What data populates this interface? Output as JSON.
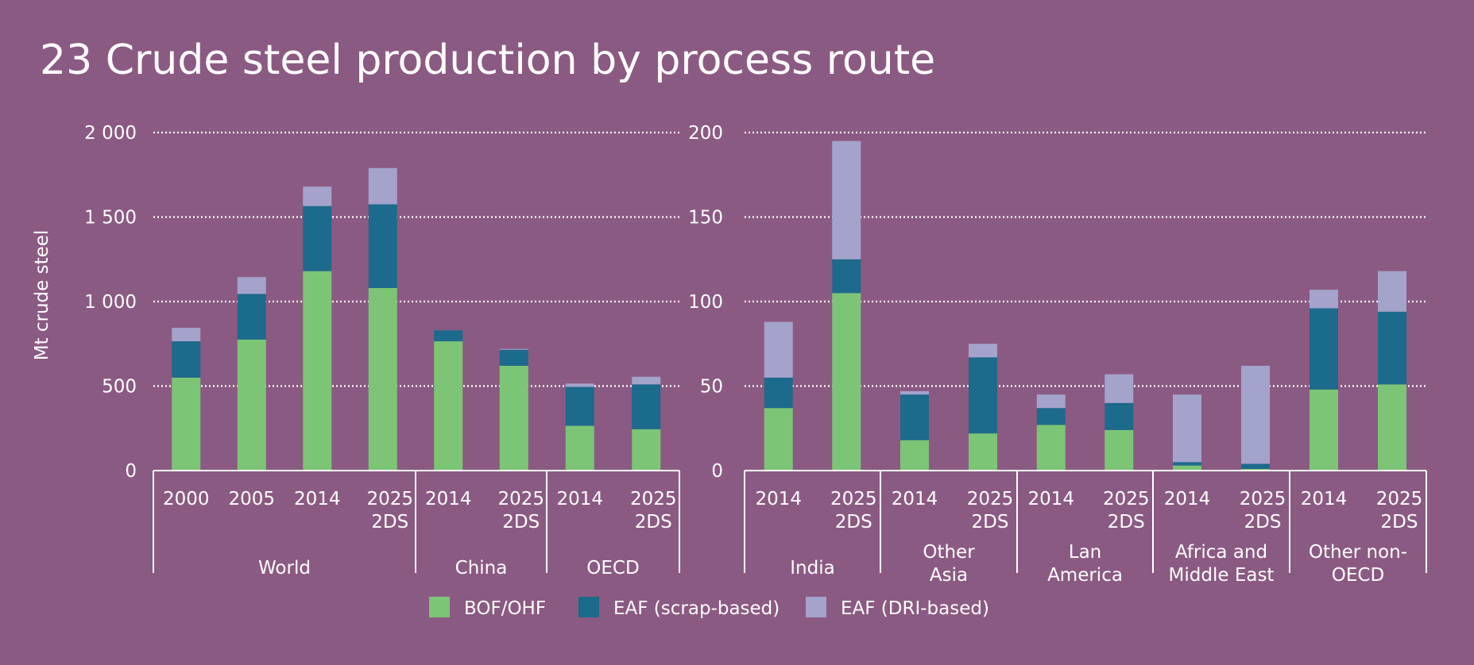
{
  "title": "23 Crude steel production by process route",
  "colors": {
    "background": "#8b5a82",
    "BOF/OHF": "#7cc576",
    "EAF (scrap-based)": "#1c6a8c",
    "EAF (DRI-based)": "#a3a3cc"
  },
  "legend": [
    "BOF/OHF",
    "EAF (scrap-based)",
    "EAF (DRI-based)"
  ],
  "chart_data": [
    {
      "type": "bar",
      "stacked": true,
      "ylabel": "Mt crude steel",
      "ylim": [
        0,
        2000
      ],
      "yticks": [
        "0",
        "500",
        "1 000",
        "1 500",
        "2 000"
      ],
      "grid": true,
      "groups": [
        {
          "name": "World",
          "categories": [
            [
              "2000"
            ],
            [
              "2005"
            ],
            [
              "2014"
            ],
            [
              "2025",
              "2DS"
            ]
          ]
        },
        {
          "name": "China",
          "categories": [
            [
              "2014"
            ],
            [
              "2025",
              "2DS"
            ]
          ]
        },
        {
          "name": "OECD",
          "categories": [
            [
              "2014"
            ],
            [
              "2025",
              "2DS"
            ]
          ]
        }
      ],
      "series": [
        {
          "name": "BOF/OHF",
          "values": [
            550,
            775,
            1180,
            1080,
            765,
            620,
            265,
            245
          ]
        },
        {
          "name": "EAF (scrap-based)",
          "values": [
            215,
            270,
            385,
            495,
            65,
            95,
            230,
            265
          ]
        },
        {
          "name": "EAF (DRI-based)",
          "values": [
            80,
            100,
            115,
            215,
            0,
            5,
            20,
            45
          ]
        }
      ]
    },
    {
      "type": "bar",
      "stacked": true,
      "ylabel": "",
      "ylim": [
        0,
        200
      ],
      "yticks": [
        "0",
        "50",
        "100",
        "150",
        "200"
      ],
      "grid": true,
      "groups": [
        {
          "name": "India",
          "categories": [
            [
              "2014"
            ],
            [
              "2025",
              "2DS"
            ]
          ]
        },
        {
          "name": "Other Asia",
          "label_lines": [
            "Other",
            "Asia"
          ],
          "categories": [
            [
              "2014"
            ],
            [
              "2025",
              "2DS"
            ]
          ]
        },
        {
          "name": "Lan America",
          "label_lines": [
            "Lan",
            "America"
          ],
          "categories": [
            [
              "2014"
            ],
            [
              "2025",
              "2DS"
            ]
          ]
        },
        {
          "name": "Africa and Middle East",
          "label_lines": [
            "Africa and",
            "Middle East"
          ],
          "categories": [
            [
              "2014"
            ],
            [
              "2025",
              "2DS"
            ]
          ]
        },
        {
          "name": "Other non-OECD",
          "label_lines": [
            "Other non-",
            "OECD"
          ],
          "categories": [
            [
              "2014"
            ],
            [
              "2025",
              "2DS"
            ]
          ]
        }
      ],
      "series": [
        {
          "name": "BOF/OHF",
          "values": [
            37,
            105,
            18,
            22,
            27,
            24,
            3,
            1,
            48,
            51
          ]
        },
        {
          "name": "EAF (scrap-based)",
          "values": [
            18,
            20,
            27,
            45,
            10,
            16,
            2,
            3,
            48,
            43
          ]
        },
        {
          "name": "EAF (DRI-based)",
          "values": [
            33,
            70,
            2,
            8,
            8,
            17,
            40,
            58,
            11,
            24
          ]
        }
      ]
    }
  ]
}
